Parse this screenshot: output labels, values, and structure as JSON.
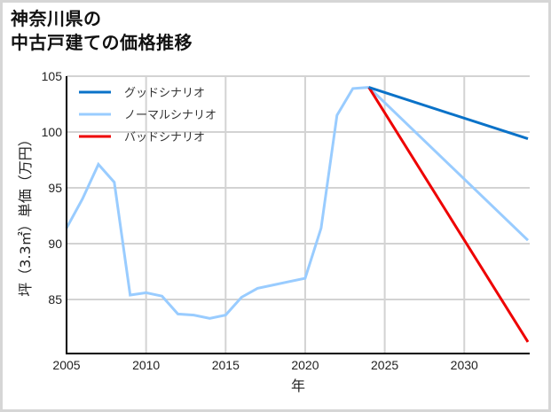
{
  "title": {
    "line1": "神奈川県の",
    "line2": "中古戸建ての価格推移"
  },
  "chart_data": {
    "type": "line",
    "title": "神奈川県の中古戸建ての価格推移",
    "xlabel": "年",
    "ylabel": "坪（3.3㎡）単価（万円）",
    "xlim": [
      2005,
      2034
    ],
    "ylim": [
      80,
      105
    ],
    "xticks": [
      2005,
      2010,
      2015,
      2020,
      2025,
      2030
    ],
    "yticks": [
      85,
      90,
      95,
      100,
      105
    ],
    "grid": true,
    "legend_position": "upper left",
    "series": [
      {
        "name": "グッドシナリオ",
        "color": "#0a72c8",
        "x": [
          2024,
          2034
        ],
        "values": [
          104.0,
          99.4
        ]
      },
      {
        "name": "ノーマルシナリオ",
        "color": "#99ccff",
        "x": [
          2005,
          2006,
          2007,
          2008,
          2009,
          2010,
          2011,
          2012,
          2013,
          2014,
          2015,
          2016,
          2017,
          2018,
          2019,
          2020,
          2021,
          2022,
          2023,
          2024,
          2034
        ],
        "values": [
          91.4,
          94.0,
          97.1,
          95.5,
          85.4,
          85.6,
          85.3,
          83.7,
          83.6,
          83.3,
          83.6,
          85.2,
          86.0,
          86.3,
          86.6,
          86.9,
          91.4,
          101.5,
          103.9,
          104.0,
          90.3
        ]
      },
      {
        "name": "バッドシナリオ",
        "color": "#ee0000",
        "x": [
          2024,
          2034
        ],
        "values": [
          104.0,
          81.2
        ]
      }
    ]
  },
  "axes": {
    "xlabel": "年",
    "ylabel": "坪（3.3㎡）単価（万円）",
    "xtick_labels": [
      "2005",
      "2010",
      "2015",
      "2020",
      "2025",
      "2030"
    ],
    "ytick_labels": [
      "85",
      "90",
      "95",
      "100",
      "105"
    ]
  },
  "legend": [
    {
      "label": "グッドシナリオ",
      "color": "#0a72c8"
    },
    {
      "label": "ノーマルシナリオ",
      "color": "#99ccff"
    },
    {
      "label": "バッドシナリオ",
      "color": "#ee0000"
    }
  ],
  "colors": {
    "grid": "#d3d3d3",
    "axis": "#000000",
    "frame": "#d6d6d6"
  }
}
